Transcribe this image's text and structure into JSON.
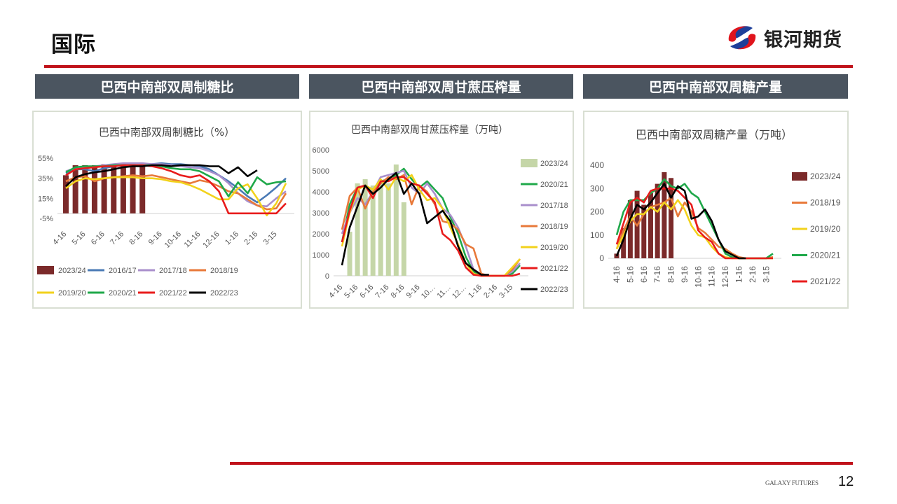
{
  "header": {
    "title": "国际",
    "logo_text": "银河期货"
  },
  "panels": [
    {
      "heading": "巴西中南部双周制糖比"
    },
    {
      "heading": "巴西中南部双周甘蔗压榨量"
    },
    {
      "heading": "巴西中南部双周糖产量"
    }
  ],
  "footer": {
    "brand": "GALAXY FUTURES",
    "page": "12"
  },
  "colors": {
    "accent_red": "#c0121a",
    "header_gray": "#4b5560"
  },
  "chart_data": [
    {
      "type": "bar+line",
      "title": "巴西中南部双周制糖比（%）",
      "ylim": [
        -5,
        55
      ],
      "yticks": [
        "-5%",
        "15%",
        "35%",
        "55%"
      ],
      "ytick_values": [
        -5,
        15,
        35,
        55
      ],
      "categories": [
        "4-16",
        "",
        "5-16",
        "",
        "6-16",
        "",
        "7-16",
        "",
        "8-16",
        "",
        "9-16",
        "",
        "10-16",
        "",
        "11-16",
        "",
        "12-16",
        "",
        "1-16",
        "",
        "2-16",
        "",
        "3-15",
        ""
      ],
      "legend": "bottom",
      "series": [
        {
          "name": "2023/24",
          "kind": "bar",
          "color": "#7b2a2a",
          "values": [
            38,
            48,
            48,
            48,
            49,
            49,
            49,
            49,
            49,
            null,
            null,
            null,
            null,
            null,
            null,
            null,
            null,
            null,
            null,
            null,
            null,
            null,
            null,
            null
          ]
        },
        {
          "name": "2016/17",
          "kind": "line",
          "color": "#4a7ab5",
          "values": [
            40,
            44,
            44,
            42,
            45,
            47,
            48,
            48,
            48,
            49,
            50,
            49,
            49,
            48,
            47,
            44,
            38,
            32,
            25,
            17,
            11,
            18,
            26,
            35
          ]
        },
        {
          "name": "2017/18",
          "kind": "line",
          "color": "#a98fcc",
          "values": [
            42,
            45,
            46,
            47,
            48,
            49,
            50,
            50,
            50,
            49,
            49,
            48,
            47,
            46,
            45,
            42,
            38,
            30,
            20,
            12,
            8,
            7,
            15,
            22
          ]
        },
        {
          "name": "2018/19",
          "kind": "line",
          "color": "#e8793a",
          "values": [
            32,
            36,
            37,
            32,
            35,
            36,
            37,
            38,
            37,
            38,
            36,
            34,
            32,
            30,
            33,
            31,
            27,
            22,
            20,
            14,
            8,
            4,
            5,
            20
          ]
        },
        {
          "name": "2019/20",
          "kind": "line",
          "color": "#f2d21c",
          "values": [
            25,
            32,
            35,
            34,
            35,
            36,
            36,
            36,
            35,
            35,
            34,
            32,
            31,
            28,
            24,
            19,
            14,
            14,
            25,
            29,
            15,
            -2,
            10,
            30
          ]
        },
        {
          "name": "2020/21",
          "kind": "line",
          "color": "#1fa84a",
          "values": [
            41,
            46,
            47,
            47,
            47,
            48,
            48,
            48,
            48,
            48,
            47,
            45,
            44,
            44,
            42,
            37,
            32,
            17,
            31,
            20,
            36,
            29,
            31,
            32
          ]
        },
        {
          "name": "2021/22",
          "kind": "line",
          "color": "#e81c1c",
          "values": [
            38,
            44,
            45,
            46,
            47,
            47,
            48,
            48,
            48,
            47,
            45,
            42,
            38,
            36,
            38,
            32,
            22,
            0,
            0,
            0,
            0,
            0,
            0,
            10
          ]
        },
        {
          "name": "2022/23",
          "kind": "line",
          "color": "#000000",
          "values": [
            27,
            36,
            39,
            41,
            42,
            44,
            46,
            47,
            47,
            48,
            48,
            47,
            48,
            48,
            48,
            47,
            47,
            40,
            46,
            37,
            43,
            null,
            null,
            null
          ]
        }
      ]
    },
    {
      "type": "bar+line",
      "title": "巴西中南部双周甘蔗压榨量（万吨）",
      "ylim": [
        0,
        6000
      ],
      "yticks": [
        "0",
        "1000",
        "2000",
        "3000",
        "4000",
        "5000",
        "6000"
      ],
      "ytick_values": [
        0,
        1000,
        2000,
        3000,
        4000,
        5000,
        6000
      ],
      "categories": [
        "4-16",
        "",
        "5-16",
        "",
        "6-16",
        "",
        "7-16",
        "",
        "8-16",
        "",
        "9-16",
        "",
        "10…",
        "",
        "11…",
        "",
        "12…",
        "",
        "1-16",
        "",
        "2-16",
        "",
        "3-15",
        ""
      ],
      "legend": "right",
      "series": [
        {
          "name": "2023/24",
          "kind": "bar",
          "color": "#c5d6a8",
          "values": [
            null,
            2100,
            4400,
            4600,
            4300,
            4500,
            4400,
            5300,
            3500,
            null,
            null,
            null,
            null,
            null,
            null,
            null,
            null,
            null,
            null,
            null,
            null,
            null,
            null,
            null
          ]
        },
        {
          "name": "2020/21",
          "kind": "line",
          "color": "#1fa84a",
          "values": [
            1600,
            3400,
            4200,
            4300,
            4100,
            4500,
            4600,
            4800,
            5100,
            4600,
            4200,
            4500,
            4100,
            3700,
            2800,
            2000,
            900,
            200,
            0,
            0,
            0,
            0,
            100,
            500
          ]
        },
        {
          "name": "2017/18",
          "kind": "line",
          "color": "#a98fcc",
          "values": [
            2000,
            3000,
            3700,
            3400,
            4000,
            4700,
            4800,
            4900,
            5000,
            4200,
            3900,
            4400,
            3900,
            3200,
            2900,
            2300,
            1400,
            300,
            50,
            0,
            0,
            0,
            200,
            600
          ]
        },
        {
          "name": "2018/19",
          "kind": "line",
          "color": "#e8793a",
          "values": [
            2200,
            3800,
            4200,
            3200,
            4000,
            4400,
            4700,
            4600,
            4800,
            3400,
            4300,
            4000,
            3400,
            2600,
            2500,
            2200,
            1500,
            1300,
            100,
            0,
            0,
            0,
            300,
            800
          ]
        },
        {
          "name": "2019/20",
          "kind": "line",
          "color": "#f2d21c",
          "values": [
            1400,
            3000,
            4100,
            4300,
            4100,
            4600,
            4100,
            4700,
            4500,
            4800,
            4100,
            3600,
            3700,
            3200,
            2300,
            1500,
            600,
            100,
            0,
            0,
            0,
            0,
            400,
            800
          ]
        },
        {
          "name": "2021/22",
          "kind": "line",
          "color": "#e81c1c",
          "values": [
            1600,
            3100,
            4200,
            4300,
            3700,
            4500,
            4500,
            4700,
            4700,
            4400,
            4300,
            3900,
            3500,
            2000,
            1700,
            1200,
            400,
            50,
            0,
            0,
            0,
            0,
            0,
            100
          ]
        },
        {
          "name": "2022/23",
          "kind": "line",
          "color": "#000000",
          "values": [
            500,
            2300,
            3300,
            4300,
            3900,
            4200,
            4600,
            4900,
            3900,
            4400,
            3900,
            2500,
            2800,
            3100,
            2600,
            1400,
            600,
            300,
            50,
            50,
            null,
            null,
            null,
            null
          ]
        }
      ]
    },
    {
      "type": "bar+line",
      "title": "巴西中南部双周糖产量（万吨）",
      "ylim": [
        0,
        400
      ],
      "yticks": [
        "0",
        "100",
        "200",
        "300",
        "400"
      ],
      "ytick_values": [
        0,
        100,
        200,
        300,
        400
      ],
      "categories": [
        "4-16",
        "",
        "5-16",
        "",
        "6-16",
        "",
        "7-16",
        "",
        "8-16",
        "",
        "9-16",
        "",
        "10-16",
        "",
        "11-16",
        "",
        "12-16",
        "",
        "1-16",
        "",
        "2-16",
        "",
        "3-15",
        ""
      ],
      "legend": "right",
      "series": [
        {
          "name": "2023/24",
          "kind": "bar",
          "color": "#7b2a2a",
          "values": [
            20,
            130,
            250,
            290,
            230,
            280,
            320,
            370,
            345,
            null,
            null,
            null,
            null,
            null,
            null,
            null,
            null,
            null,
            null,
            null,
            null,
            null,
            null,
            null
          ]
        },
        {
          "name": "2018/19",
          "kind": "line",
          "color": "#e8793a",
          "values": [
            40,
            120,
            180,
            140,
            190,
            220,
            230,
            240,
            260,
            180,
            240,
            200,
            130,
            110,
            80,
            50,
            40,
            20,
            5,
            0,
            0,
            0,
            0,
            5
          ]
        },
        {
          "name": "2019/20",
          "kind": "line",
          "color": "#f2d21c",
          "values": [
            40,
            100,
            160,
            190,
            190,
            220,
            200,
            240,
            210,
            250,
            210,
            140,
            100,
            90,
            50,
            20,
            5,
            0,
            0,
            0,
            0,
            0,
            0,
            0
          ]
        },
        {
          "name": "2020/21",
          "kind": "line",
          "color": "#1fa84a",
          "values": [
            100,
            200,
            250,
            250,
            250,
            280,
            300,
            340,
            310,
            300,
            320,
            280,
            260,
            200,
            140,
            80,
            20,
            5,
            0,
            0,
            0,
            0,
            0,
            20
          ]
        },
        {
          "name": "2021/22",
          "kind": "line",
          "color": "#e81c1c",
          "values": [
            60,
            150,
            240,
            260,
            240,
            290,
            300,
            300,
            300,
            290,
            260,
            230,
            120,
            90,
            70,
            20,
            0,
            0,
            0,
            0,
            0,
            0,
            0,
            0
          ]
        },
        {
          "kind": "line",
          "color": "#000000",
          "values": [
            10,
            80,
            170,
            230,
            210,
            240,
            280,
            320,
            260,
            310,
            290,
            170,
            180,
            210,
            160,
            80,
            30,
            15,
            0,
            0,
            null,
            null,
            null,
            null
          ]
        }
      ]
    }
  ]
}
